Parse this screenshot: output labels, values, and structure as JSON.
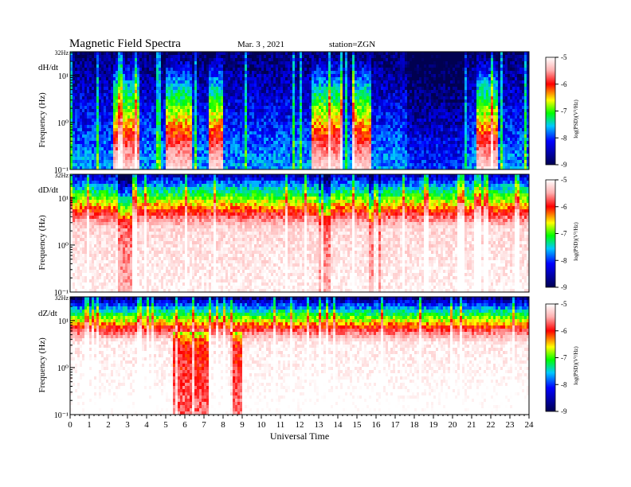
{
  "header": {
    "title": "Magnetic  Field  Spectra",
    "date": "Mar. 3  , 2021",
    "station": "station=ZGN"
  },
  "chart_data": {
    "type": "heatmap",
    "xlabel": "Universal Time",
    "x_ticks": [
      "0",
      "1",
      "2",
      "3",
      "4",
      "5",
      "6",
      "7",
      "8",
      "9",
      "10",
      "11",
      "12",
      "13",
      "14",
      "15",
      "16",
      "17",
      "18",
      "19",
      "20",
      "21",
      "22",
      "23",
      "24"
    ],
    "xlim": [
      0,
      24
    ],
    "ylabel": "Frequency  (Hz)",
    "y_scale": "log",
    "y_ticks": [
      "10⁻¹",
      "10⁰",
      "10¹"
    ],
    "y_top_label": "32Hz",
    "colorbar": {
      "label": "log(PSD)(V²/Hz)",
      "ticks": [
        "-5",
        "-6",
        "-7",
        "-8",
        "-9"
      ],
      "range": [
        -9,
        -5
      ],
      "colors": [
        "#000050",
        "#0000ff",
        "#00c8ff",
        "#00ff00",
        "#ffff00",
        "#ff0000",
        "#ffffff"
      ]
    },
    "panels": [
      {
        "name": "dH/dt",
        "background_level": -8.6,
        "active_hours": [
          [
            2.2,
            3.6
          ],
          [
            5.0,
            6.4
          ],
          [
            7.2,
            8.0
          ],
          [
            12.6,
            14.2
          ],
          [
            14.8,
            15.8
          ],
          [
            21.2,
            22.4
          ]
        ],
        "quiet_hours": [
          [
            17.6,
            20.8
          ]
        ]
      },
      {
        "name": "dD/dt",
        "background_level": -6.2,
        "active_hours": [
          [
            2.4,
            3.2
          ],
          [
            13.0,
            13.6
          ],
          [
            15.6,
            16.2
          ]
        ],
        "quiet_hours": []
      },
      {
        "name": "dZ/dt",
        "background_level": -6.0,
        "active_hours": [
          [
            5.4,
            7.2
          ],
          [
            8.4,
            9.0
          ]
        ],
        "quiet_hours": []
      }
    ]
  }
}
